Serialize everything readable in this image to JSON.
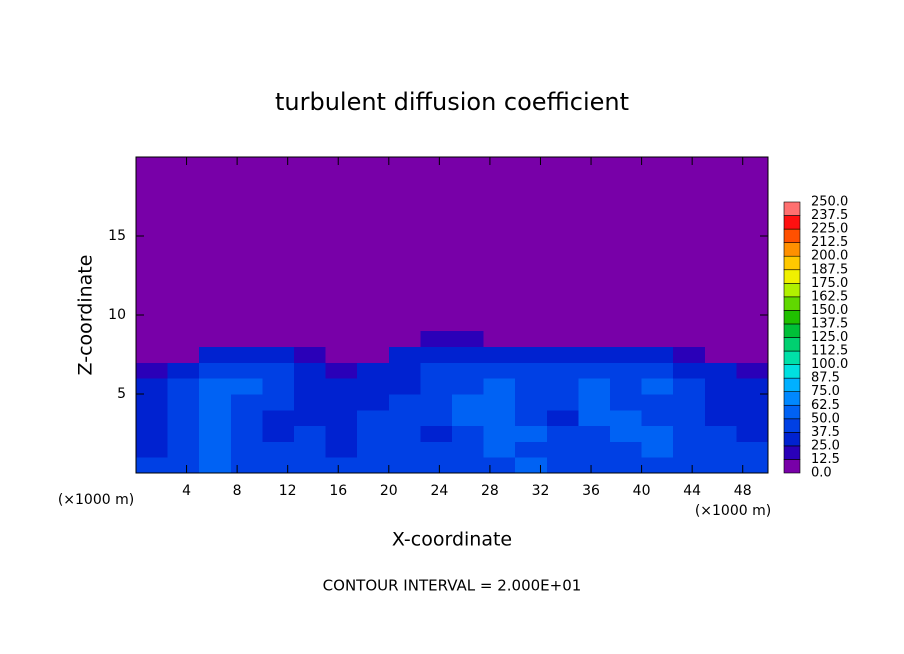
{
  "chart_data": {
    "type": "heatmap",
    "title": "turbulent diffusion coefficient",
    "x_label": "X-coordinate",
    "y_label": "Z-coordinate",
    "x_unit_label": "(×1000 m)",
    "y_unit_label": "(×1000 m)",
    "note": "CONTOUR INTERVAL = 2.000E+01",
    "xlim": [
      0,
      50
    ],
    "ylim": [
      0,
      20
    ],
    "xticks": [
      4,
      8,
      12,
      16,
      20,
      24,
      28,
      32,
      36,
      40,
      44,
      48
    ],
    "yticks": [
      5,
      10,
      15
    ],
    "field": {
      "x": [
        0,
        2.5,
        5,
        7.5,
        10,
        12.5,
        15,
        17.5,
        20,
        22.5,
        25,
        27.5,
        30,
        32.5,
        35,
        37.5,
        40,
        42.5,
        45,
        47.5,
        50
      ],
      "z": [
        0,
        1,
        2,
        3,
        4,
        5,
        6,
        7,
        8,
        9
      ],
      "values": [
        [
          40,
          45,
          50,
          45,
          40,
          42,
          38,
          40,
          45,
          40,
          42,
          40,
          50,
          45,
          40,
          42,
          48,
          40,
          42,
          40
        ],
        [
          35,
          40,
          55,
          42,
          38,
          40,
          36,
          40,
          42,
          38,
          45,
          55,
          48,
          40,
          38,
          45,
          55,
          42,
          40,
          38
        ],
        [
          32,
          45,
          58,
          40,
          36,
          38,
          34,
          42,
          40,
          36,
          48,
          58,
          50,
          38,
          42,
          52,
          50,
          40,
          38,
          36
        ],
        [
          30,
          48,
          55,
          44,
          36,
          34,
          32,
          40,
          38,
          40,
          52,
          56,
          48,
          36,
          55,
          50,
          45,
          44,
          36,
          34
        ],
        [
          28,
          46,
          52,
          48,
          40,
          32,
          30,
          36,
          38,
          44,
          50,
          52,
          44,
          40,
          58,
          46,
          48,
          42,
          34,
          30
        ],
        [
          26,
          40,
          50,
          52,
          46,
          34,
          28,
          32,
          36,
          46,
          48,
          50,
          46,
          44,
          54,
          44,
          50,
          40,
          30,
          28
        ],
        [
          20,
          32,
          44,
          48,
          42,
          30,
          20,
          26,
          34,
          44,
          46,
          48,
          44,
          42,
          46,
          40,
          44,
          36,
          26,
          22
        ],
        [
          0,
          12,
          28,
          32,
          26,
          14,
          0,
          10,
          26,
          34,
          36,
          30,
          32,
          28,
          30,
          28,
          26,
          16,
          0,
          0
        ],
        [
          0,
          0,
          0,
          0,
          0,
          0,
          0,
          0,
          0,
          14,
          18,
          0,
          0,
          0,
          0,
          0,
          0,
          0,
          0,
          0
        ]
      ]
    },
    "colorbar": {
      "lim": [
        0,
        250
      ],
      "ticks": [
        {
          "value": 0,
          "label": "0.0"
        },
        {
          "value": 12.5,
          "label": "12.5"
        },
        {
          "value": 25,
          "label": "25.0"
        },
        {
          "value": 37.5,
          "label": "37.5"
        },
        {
          "value": 50,
          "label": "50.0"
        },
        {
          "value": 62.5,
          "label": "62.5"
        },
        {
          "value": 75,
          "label": "75.0"
        },
        {
          "value": 87.5,
          "label": "87.5"
        },
        {
          "value": 100,
          "label": "100.0"
        },
        {
          "value": 112.5,
          "label": "112.5"
        },
        {
          "value": 125,
          "label": "125.0"
        },
        {
          "value": 137.5,
          "label": "137.5"
        },
        {
          "value": 150,
          "label": "150.0"
        },
        {
          "value": 162.5,
          "label": "162.5"
        },
        {
          "value": 175,
          "label": "175.0"
        },
        {
          "value": 187.5,
          "label": "187.5"
        },
        {
          "value": 200,
          "label": "200.0"
        },
        {
          "value": 212.5,
          "label": "212.5"
        },
        {
          "value": 225,
          "label": "225.0"
        },
        {
          "value": 237.5,
          "label": "237.5"
        },
        {
          "value": 250,
          "label": "250.0"
        }
      ],
      "colors": [
        "#7800a8",
        "#2a00b8",
        "#0022d0",
        "#0040e4",
        "#0062f4",
        "#0088ff",
        "#00b0ff",
        "#00e0e0",
        "#00e0a8",
        "#00d070",
        "#00c038",
        "#20c000",
        "#60d800",
        "#b0f000",
        "#f0f000",
        "#ffc800",
        "#ff9000",
        "#ff5000",
        "#ff1010",
        "#ff7070"
      ]
    }
  }
}
